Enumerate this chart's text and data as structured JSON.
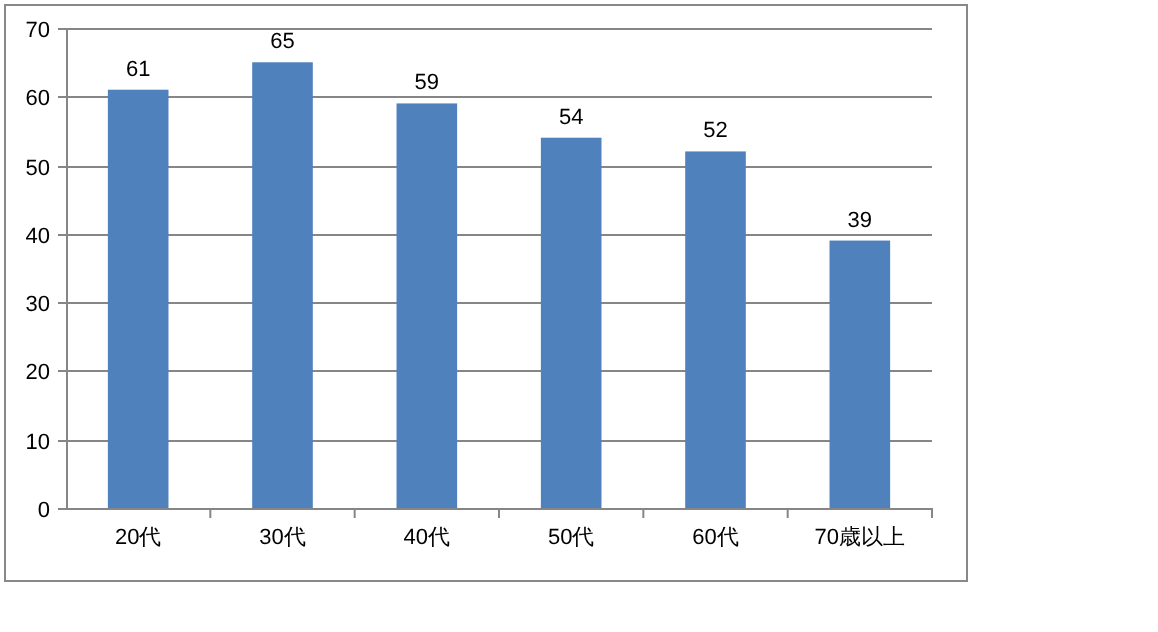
{
  "chart_data": {
    "type": "bar",
    "categories": [
      "20代",
      "30代",
      "40代",
      "50代",
      "60代",
      "70歳以上"
    ],
    "values": [
      61,
      65,
      59,
      54,
      52,
      39
    ],
    "color": "#4f81bd",
    "ylim": [
      0,
      70
    ],
    "yticks": [
      0,
      10,
      20,
      30,
      40,
      50,
      60,
      70
    ],
    "grid": "y",
    "data_labels": true
  }
}
